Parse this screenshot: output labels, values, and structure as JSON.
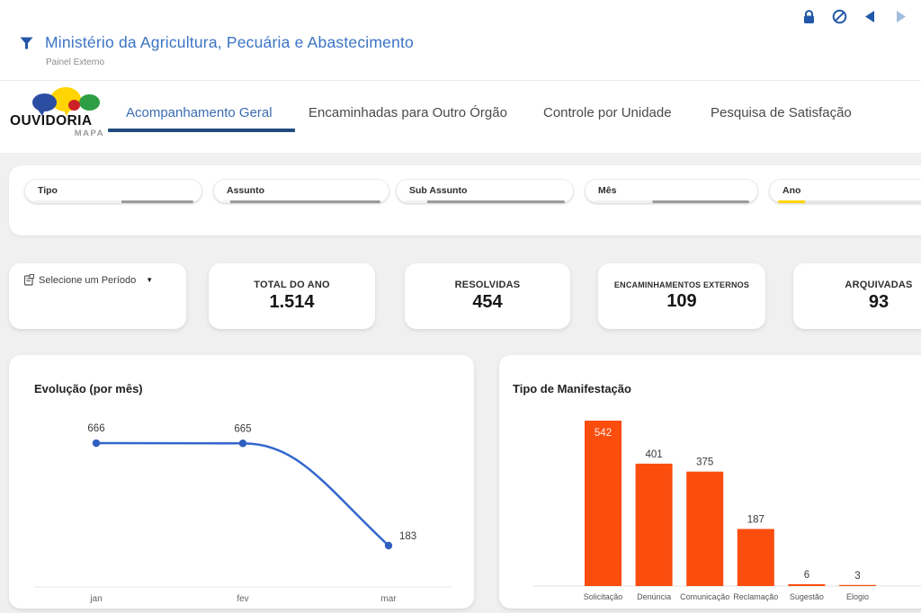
{
  "toolbar": {
    "icons": [
      {
        "name": "lock-icon"
      },
      {
        "name": "block-icon"
      },
      {
        "name": "nav-prev-icon"
      },
      {
        "name": "nav-next-icon",
        "disabled": true
      }
    ]
  },
  "header": {
    "title": "Ministério da Agricultura, Pecuária e Abastecimento",
    "subtitle": "Painel Externo",
    "filter_icon": "funnel-icon"
  },
  "logo": {
    "line1": "OUVIDORIA",
    "line2": "MAPA"
  },
  "tabs": [
    {
      "label": "Acompanhamento Geral",
      "active": true
    },
    {
      "label": "Encaminhadas para Outro Órgão",
      "active": false
    },
    {
      "label": "Controle por Unidade",
      "active": false
    },
    {
      "label": "Pesquisa de Satisfação",
      "active": false
    }
  ],
  "filters": {
    "items": [
      {
        "label": "Tipo"
      },
      {
        "label": "Assunto"
      },
      {
        "label": "Sub Assunto"
      },
      {
        "label": "Mês"
      },
      {
        "label": "Ano",
        "accent": "#FFD500"
      }
    ]
  },
  "period_selector": {
    "label": "Selecione um Período",
    "icon": "period-icon",
    "caret": "▼"
  },
  "kpi_cards": [
    {
      "label": "TOTAL DO ANO",
      "value": "1.514"
    },
    {
      "label": "RESOLVIDAS",
      "value": "454"
    },
    {
      "label": "ENCAMINHAMENTOS EXTERNOS",
      "value": "109"
    },
    {
      "label": "ARQUIVADAS",
      "value": "93"
    }
  ],
  "colors": {
    "accent_blue": "#2257A8",
    "title_blue": "#3B74C4",
    "tab_active_blue": "#3A6CB2",
    "tab_underline": "#1F4C7C",
    "chart_line_blue": "#3366CC",
    "chart_dot_blue": "#2F5FBF",
    "chart_bar_orange": "#FA4D0E",
    "slicer_accent_yellow": "#FFD500",
    "page_gray": "#F0F0F0"
  },
  "chart_data": [
    {
      "type": "line",
      "title": "Evolução (por mês)",
      "categories": [
        "jan",
        "fev",
        "mar"
      ],
      "values": [
        666,
        665,
        183
      ],
      "series_color": "#3366CC",
      "data_labels": true,
      "grid": false,
      "legend": false
    },
    {
      "type": "bar",
      "title": "Tipo de Manifestação",
      "categories": [
        "Solicitação",
        "Denúncia",
        "Comunicação",
        "Reclamação",
        "Sugestão",
        "Elogio"
      ],
      "values": [
        542,
        401,
        375,
        187,
        6,
        3
      ],
      "series_color": "#FA4D0E",
      "data_labels": true,
      "grid": false,
      "legend": false
    }
  ]
}
